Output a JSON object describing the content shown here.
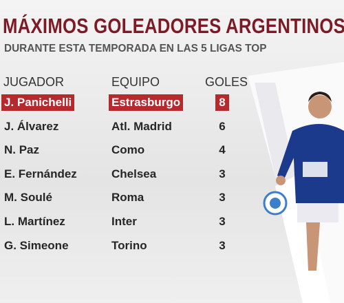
{
  "header": {
    "title": "MÁXIMOS GOLEADORES ARGENTINOS",
    "subtitle": "DURANTE ESTA TEMPORADA EN LAS 5 LIGAS TOP"
  },
  "table": {
    "columns": [
      "JUGADOR",
      "EQUIPO",
      "GOLES"
    ],
    "rows": [
      [
        "J. Panichelli",
        "Estrasburgo",
        8
      ],
      [
        "J. Álvarez",
        "Atl. Madrid",
        6
      ],
      [
        "N. Paz",
        "Como",
        4
      ],
      [
        "E. Fernández",
        "Chelsea",
        3
      ],
      [
        "M. Soulé",
        "Roma",
        3
      ],
      [
        "L. Martínez",
        "Inter",
        3
      ],
      [
        "G. Simeone",
        "Torino",
        3
      ]
    ]
  }
}
